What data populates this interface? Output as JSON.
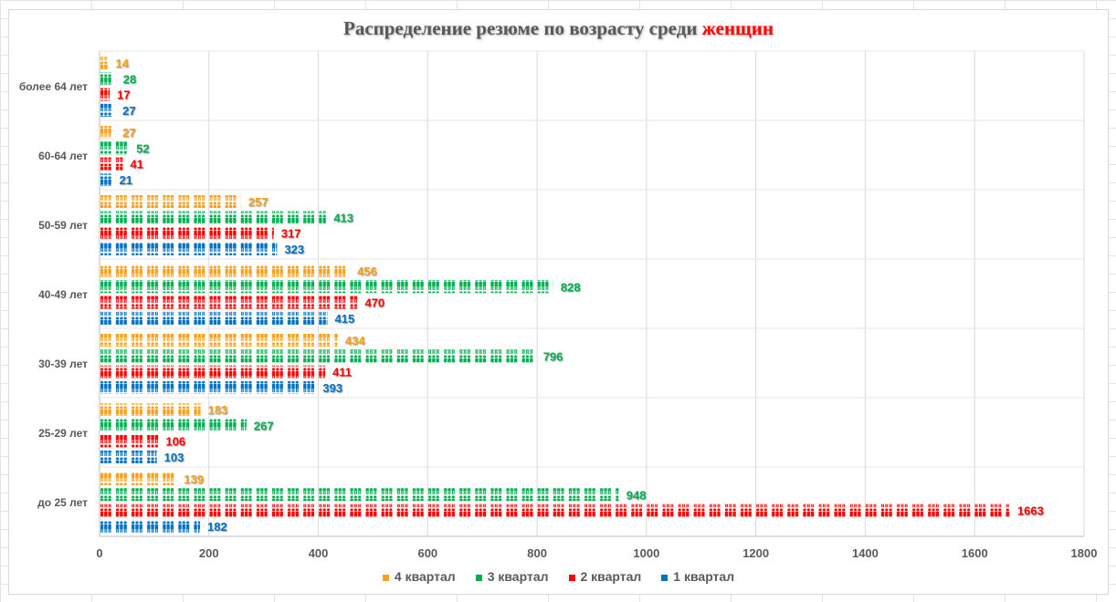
{
  "chart_data": {
    "type": "bar",
    "orientation": "horizontal",
    "title": "Распределение резюме по возрасту среди ",
    "title_highlight": "женщин",
    "categories": [
      "более 64 лет",
      "60-64 лет",
      "50-59 лет",
      "40-49 лет",
      "30-39 лет",
      "25-29 лет",
      "до 25 лет"
    ],
    "series": [
      {
        "name": "4 квартал",
        "color": "#F9A11B",
        "values": [
          14,
          27,
          257,
          456,
          434,
          183,
          139
        ]
      },
      {
        "name": "3 квартал",
        "color": "#00B050",
        "values": [
          28,
          52,
          413,
          828,
          796,
          267,
          948
        ]
      },
      {
        "name": "2 квартал",
        "color": "#FF0000",
        "values": [
          17,
          41,
          317,
          470,
          411,
          106,
          1663
        ]
      },
      {
        "name": "1 квартал",
        "color": "#0070C0",
        "values": [
          27,
          21,
          323,
          415,
          393,
          103,
          182
        ]
      }
    ],
    "xlim": [
      0,
      1800
    ],
    "xticks": [
      "0",
      "200",
      "400",
      "600",
      "800",
      "1000",
      "1200",
      "1400",
      "1600",
      "1800"
    ],
    "grid": true,
    "legend": "bottom"
  }
}
